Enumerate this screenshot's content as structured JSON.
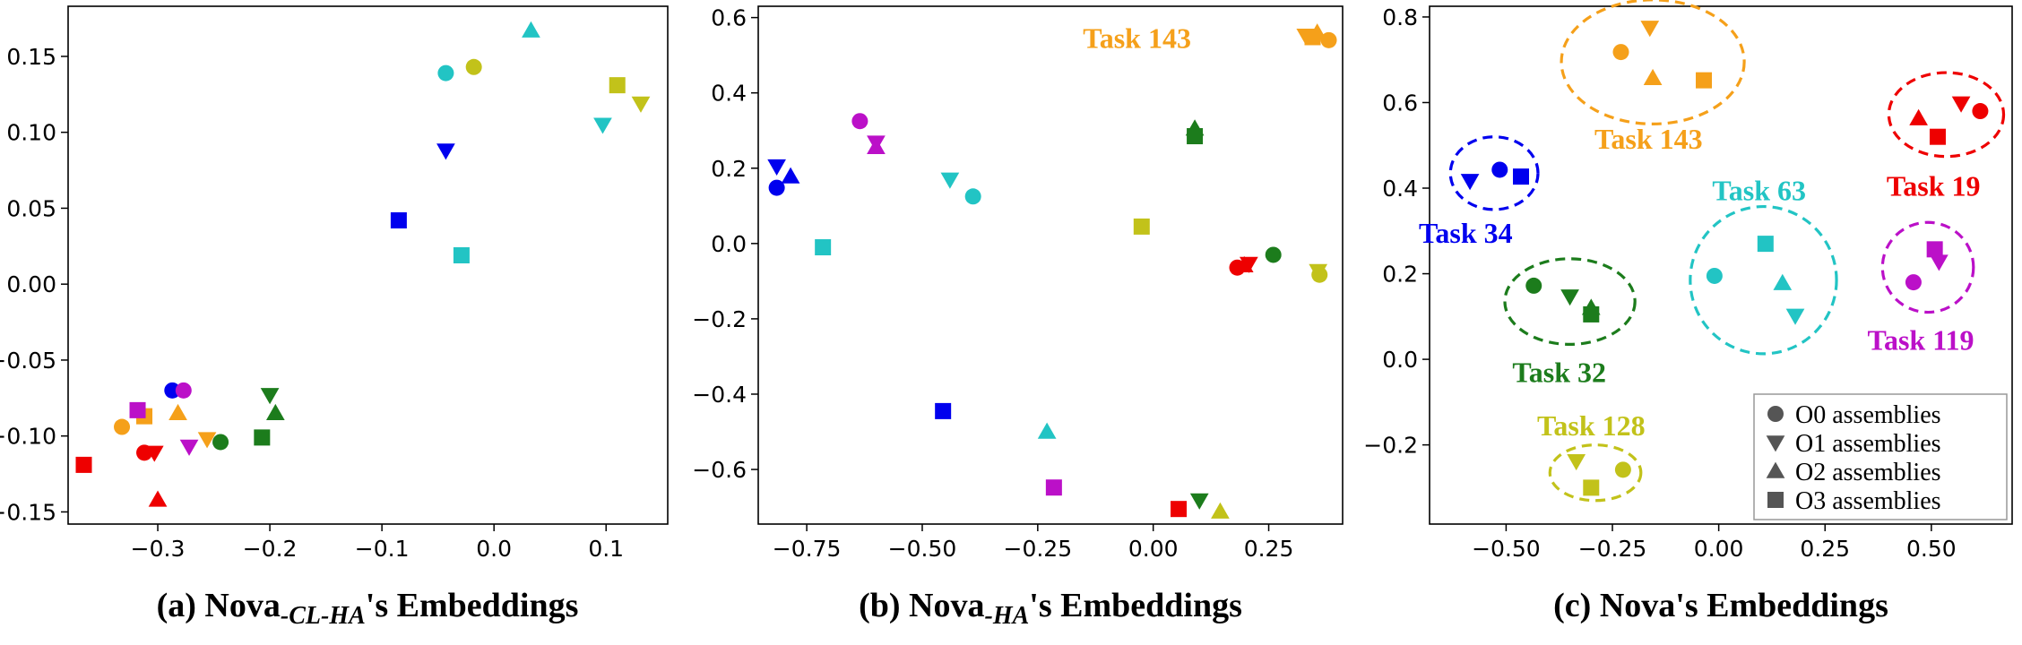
{
  "colors": {
    "blue": "#0000ee",
    "orange": "#f5a01a",
    "red": "#ee0000",
    "magenta": "#bb10c8",
    "cyan": "#22c4c4",
    "olive": "#c2c21a",
    "green": "#1c7c1c"
  },
  "chart_data": [
    {
      "type": "scatter",
      "id": "a",
      "caption": {
        "prefix": "(a) Nova",
        "sub": "-CL-HA",
        "suffix": "'s Embeddings"
      },
      "xlim": [
        -0.38,
        0.155
      ],
      "ylim": [
        -0.158,
        0.183
      ],
      "xticks": [
        -0.3,
        -0.2,
        -0.1,
        0.0,
        0.1
      ],
      "xtick_labels": [
        "−0.3",
        "−0.2",
        "−0.1",
        "0.0",
        "0.1"
      ],
      "yticks": [
        -0.15,
        -0.1,
        -0.05,
        0.0,
        0.05,
        0.1,
        0.15
      ],
      "ytick_labels": [
        "−0.15",
        "−0.10",
        "−0.05",
        "0.00",
        "0.05",
        "0.10",
        "0.15"
      ],
      "points": [
        {
          "x": -0.287,
          "y": -0.07,
          "color": "blue",
          "marker": "circle"
        },
        {
          "x": -0.043,
          "y": 0.088,
          "color": "blue",
          "marker": "tri_down"
        },
        {
          "x": -0.085,
          "y": 0.042,
          "color": "blue",
          "marker": "square"
        },
        {
          "x": -0.332,
          "y": -0.094,
          "color": "orange",
          "marker": "circle"
        },
        {
          "x": -0.256,
          "y": -0.102,
          "color": "orange",
          "marker": "tri_down"
        },
        {
          "x": -0.282,
          "y": -0.085,
          "color": "orange",
          "marker": "tri_up"
        },
        {
          "x": -0.312,
          "y": -0.087,
          "color": "orange",
          "marker": "square"
        },
        {
          "x": -0.312,
          "y": -0.111,
          "color": "red",
          "marker": "circle"
        },
        {
          "x": -0.303,
          "y": -0.111,
          "color": "red",
          "marker": "tri_down"
        },
        {
          "x": -0.3,
          "y": -0.142,
          "color": "red",
          "marker": "tri_up"
        },
        {
          "x": -0.366,
          "y": -0.119,
          "color": "red",
          "marker": "square"
        },
        {
          "x": -0.277,
          "y": -0.07,
          "color": "magenta",
          "marker": "circle"
        },
        {
          "x": -0.272,
          "y": -0.107,
          "color": "magenta",
          "marker": "tri_down"
        },
        {
          "x": -0.318,
          "y": -0.083,
          "color": "magenta",
          "marker": "square"
        },
        {
          "x": -0.043,
          "y": 0.139,
          "color": "cyan",
          "marker": "circle"
        },
        {
          "x": 0.097,
          "y": 0.105,
          "color": "cyan",
          "marker": "tri_down"
        },
        {
          "x": 0.033,
          "y": 0.167,
          "color": "cyan",
          "marker": "tri_up"
        },
        {
          "x": -0.029,
          "y": 0.019,
          "color": "cyan",
          "marker": "square"
        },
        {
          "x": -0.018,
          "y": 0.143,
          "color": "olive",
          "marker": "circle"
        },
        {
          "x": 0.131,
          "y": 0.119,
          "color": "olive",
          "marker": "tri_down"
        },
        {
          "x": 0.11,
          "y": 0.131,
          "color": "olive",
          "marker": "square"
        },
        {
          "x": -0.244,
          "y": -0.104,
          "color": "green",
          "marker": "circle"
        },
        {
          "x": -0.2,
          "y": -0.073,
          "color": "green",
          "marker": "tri_down"
        },
        {
          "x": -0.195,
          "y": -0.085,
          "color": "green",
          "marker": "tri_up"
        },
        {
          "x": -0.207,
          "y": -0.101,
          "color": "green",
          "marker": "square"
        }
      ]
    },
    {
      "type": "scatter",
      "id": "b",
      "caption": {
        "prefix": "(b) Nova",
        "sub": "-HA",
        "suffix": "'s Embeddings"
      },
      "xlim": [
        -0.855,
        0.41
      ],
      "ylim": [
        -0.745,
        0.63
      ],
      "xticks": [
        -0.75,
        -0.5,
        -0.25,
        0.0,
        0.25
      ],
      "xtick_labels": [
        "−0.75",
        "−0.50",
        "−0.25",
        "0.00",
        "0.25"
      ],
      "yticks": [
        -0.6,
        -0.4,
        -0.2,
        0.0,
        0.2,
        0.4,
        0.6
      ],
      "ytick_labels": [
        "−0.6",
        "−0.4",
        "−0.2",
        "0.0",
        "0.2",
        "0.4",
        "0.6"
      ],
      "annotations": [
        {
          "text": "Task 143",
          "x": -0.035,
          "y": 0.545,
          "color": "orange"
        }
      ],
      "points": [
        {
          "x": -0.815,
          "y": 0.148,
          "color": "blue",
          "marker": "circle"
        },
        {
          "x": -0.815,
          "y": 0.205,
          "color": "blue",
          "marker": "tri_down"
        },
        {
          "x": -0.785,
          "y": 0.178,
          "color": "blue",
          "marker": "tri_up"
        },
        {
          "x": -0.455,
          "y": -0.445,
          "color": "blue",
          "marker": "square"
        },
        {
          "x": 0.38,
          "y": 0.54,
          "color": "orange",
          "marker": "circle"
        },
        {
          "x": 0.33,
          "y": 0.552,
          "color": "orange",
          "marker": "tri_down"
        },
        {
          "x": 0.355,
          "y": 0.56,
          "color": "orange",
          "marker": "tri_up"
        },
        {
          "x": 0.345,
          "y": 0.548,
          "color": "orange",
          "marker": "square"
        },
        {
          "x": 0.182,
          "y": -0.064,
          "color": "red",
          "marker": "circle"
        },
        {
          "x": 0.207,
          "y": -0.054,
          "color": "red",
          "marker": "tri_down"
        },
        {
          "x": 0.197,
          "y": -0.058,
          "color": "red",
          "marker": "tri_up"
        },
        {
          "x": 0.055,
          "y": -0.705,
          "color": "red",
          "marker": "square"
        },
        {
          "x": -0.635,
          "y": 0.325,
          "color": "magenta",
          "marker": "circle"
        },
        {
          "x": -0.6,
          "y": 0.268,
          "color": "magenta",
          "marker": "tri_down"
        },
        {
          "x": -0.6,
          "y": 0.256,
          "color": "magenta",
          "marker": "tri_up"
        },
        {
          "x": -0.215,
          "y": -0.648,
          "color": "magenta",
          "marker": "square"
        },
        {
          "x": -0.39,
          "y": 0.125,
          "color": "cyan",
          "marker": "circle"
        },
        {
          "x": -0.44,
          "y": 0.17,
          "color": "cyan",
          "marker": "tri_down"
        },
        {
          "x": -0.23,
          "y": -0.5,
          "color": "cyan",
          "marker": "tri_up"
        },
        {
          "x": -0.715,
          "y": -0.01,
          "color": "cyan",
          "marker": "square"
        },
        {
          "x": 0.36,
          "y": -0.083,
          "color": "olive",
          "marker": "circle"
        },
        {
          "x": 0.357,
          "y": -0.073,
          "color": "olive",
          "marker": "tri_down"
        },
        {
          "x": 0.145,
          "y": -0.712,
          "color": "olive",
          "marker": "tri_up"
        },
        {
          "x": -0.025,
          "y": 0.045,
          "color": "olive",
          "marker": "square"
        },
        {
          "x": 0.26,
          "y": -0.03,
          "color": "green",
          "marker": "circle"
        },
        {
          "x": 0.1,
          "y": -0.682,
          "color": "green",
          "marker": "tri_down"
        },
        {
          "x": 0.09,
          "y": 0.305,
          "color": "green",
          "marker": "tri_up"
        },
        {
          "x": 0.09,
          "y": 0.285,
          "color": "green",
          "marker": "square"
        }
      ]
    },
    {
      "type": "scatter",
      "id": "c",
      "caption": {
        "prefix": "(c) Nova's Embeddings",
        "sub": "",
        "suffix": ""
      },
      "xlim": [
        -0.68,
        0.69
      ],
      "ylim": [
        -0.385,
        0.825
      ],
      "xticks": [
        -0.5,
        -0.25,
        0.0,
        0.25,
        0.5
      ],
      "xtick_labels": [
        "−0.50",
        "−0.25",
        "0.00",
        "0.25",
        "0.50"
      ],
      "yticks": [
        -0.2,
        0.0,
        0.2,
        0.4,
        0.6,
        0.8
      ],
      "ytick_labels": [
        "−0.2",
        "0.0",
        "0.2",
        "0.4",
        "0.6",
        "0.8"
      ],
      "clusters": [
        {
          "label": "Task 143",
          "color": "orange",
          "cx": -0.155,
          "cy": 0.695,
          "rx": 0.215,
          "ry": 0.145,
          "lx": -0.165,
          "ly": 0.515
        },
        {
          "label": "Task 19",
          "color": "red",
          "cx": 0.535,
          "cy": 0.572,
          "rx": 0.135,
          "ry": 0.098,
          "lx": 0.505,
          "ly": 0.405
        },
        {
          "label": "Task 34",
          "color": "blue",
          "cx": -0.528,
          "cy": 0.435,
          "rx": 0.103,
          "ry": 0.085,
          "lx": -0.595,
          "ly": 0.295
        },
        {
          "label": "Task 63",
          "color": "cyan",
          "cx": 0.105,
          "cy": 0.185,
          "rx": 0.172,
          "ry": 0.172,
          "lx": 0.095,
          "ly": 0.395
        },
        {
          "label": "Task 119",
          "color": "magenta",
          "cx": 0.492,
          "cy": 0.215,
          "rx": 0.107,
          "ry": 0.105,
          "lx": 0.475,
          "ly": 0.045
        },
        {
          "label": "Task 32",
          "color": "green",
          "cx": -0.35,
          "cy": 0.135,
          "rx": 0.153,
          "ry": 0.1,
          "lx": -0.375,
          "ly": -0.03
        },
        {
          "label": "Task 128",
          "color": "olive",
          "cx": -0.29,
          "cy": -0.265,
          "rx": 0.107,
          "ry": 0.065,
          "lx": -0.3,
          "ly": -0.155
        }
      ],
      "points": [
        {
          "x": -0.515,
          "y": 0.443,
          "color": "blue",
          "marker": "circle"
        },
        {
          "x": -0.585,
          "y": 0.417,
          "color": "blue",
          "marker": "tri_down"
        },
        {
          "x": -0.465,
          "y": 0.427,
          "color": "blue",
          "marker": "square"
        },
        {
          "x": -0.23,
          "y": 0.718,
          "color": "orange",
          "marker": "circle"
        },
        {
          "x": -0.162,
          "y": 0.775,
          "color": "orange",
          "marker": "tri_down"
        },
        {
          "x": -0.155,
          "y": 0.657,
          "color": "orange",
          "marker": "tri_up"
        },
        {
          "x": -0.035,
          "y": 0.652,
          "color": "orange",
          "marker": "square"
        },
        {
          "x": 0.615,
          "y": 0.58,
          "color": "red",
          "marker": "circle"
        },
        {
          "x": 0.57,
          "y": 0.598,
          "color": "red",
          "marker": "tri_down"
        },
        {
          "x": 0.47,
          "y": 0.563,
          "color": "red",
          "marker": "tri_up"
        },
        {
          "x": 0.515,
          "y": 0.52,
          "color": "red",
          "marker": "square"
        },
        {
          "x": 0.458,
          "y": 0.18,
          "color": "magenta",
          "marker": "circle"
        },
        {
          "x": 0.518,
          "y": 0.228,
          "color": "magenta",
          "marker": "tri_down"
        },
        {
          "x": 0.508,
          "y": 0.257,
          "color": "magenta",
          "marker": "square"
        },
        {
          "x": -0.01,
          "y": 0.195,
          "color": "cyan",
          "marker": "circle"
        },
        {
          "x": 0.18,
          "y": 0.102,
          "color": "cyan",
          "marker": "tri_down"
        },
        {
          "x": 0.15,
          "y": 0.178,
          "color": "cyan",
          "marker": "tri_up"
        },
        {
          "x": 0.11,
          "y": 0.27,
          "color": "cyan",
          "marker": "square"
        },
        {
          "x": -0.225,
          "y": -0.258,
          "color": "olive",
          "marker": "circle"
        },
        {
          "x": -0.335,
          "y": -0.238,
          "color": "olive",
          "marker": "tri_down"
        },
        {
          "x": -0.3,
          "y": -0.3,
          "color": "olive",
          "marker": "square"
        },
        {
          "x": -0.435,
          "y": 0.172,
          "color": "green",
          "marker": "circle"
        },
        {
          "x": -0.35,
          "y": 0.147,
          "color": "green",
          "marker": "tri_down"
        },
        {
          "x": -0.3,
          "y": 0.12,
          "color": "green",
          "marker": "tri_up"
        },
        {
          "x": -0.3,
          "y": 0.105,
          "color": "green",
          "marker": "square"
        }
      ],
      "legend": {
        "position": "lower-right",
        "entries": [
          {
            "label": "O0 assemblies",
            "marker": "circle"
          },
          {
            "label": "O1 assemblies",
            "marker": "tri_down"
          },
          {
            "label": "O2 assemblies",
            "marker": "tri_up"
          },
          {
            "label": "O3 assemblies",
            "marker": "square"
          }
        ]
      }
    }
  ]
}
